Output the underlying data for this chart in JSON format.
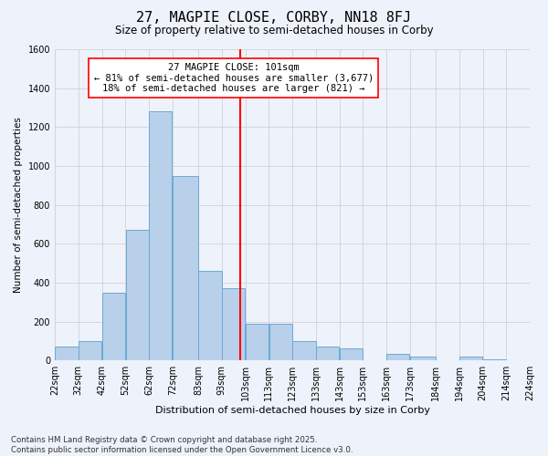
{
  "title": "27, MAGPIE CLOSE, CORBY, NN18 8FJ",
  "subtitle": "Size of property relative to semi-detached houses in Corby",
  "xlabel": "Distribution of semi-detached houses by size in Corby",
  "ylabel": "Number of semi-detached properties",
  "property_size": 101,
  "annotation_line1": "27 MAGPIE CLOSE: 101sqm",
  "annotation_line2": "← 81% of semi-detached houses are smaller (3,677)",
  "annotation_line3": "18% of semi-detached houses are larger (821) →",
  "bins": [
    22,
    32,
    42,
    52,
    62,
    72,
    83,
    93,
    103,
    113,
    123,
    133,
    143,
    153,
    163,
    173,
    184,
    194,
    204,
    214,
    224
  ],
  "bin_labels": [
    "22sqm",
    "32sqm",
    "42sqm",
    "52sqm",
    "62sqm",
    "72sqm",
    "83sqm",
    "93sqm",
    "103sqm",
    "113sqm",
    "123sqm",
    "133sqm",
    "143sqm",
    "153sqm",
    "163sqm",
    "173sqm",
    "184sqm",
    "194sqm",
    "204sqm",
    "214sqm",
    "224sqm"
  ],
  "counts": [
    70,
    100,
    350,
    670,
    1280,
    950,
    460,
    370,
    190,
    190,
    100,
    70,
    60,
    0,
    35,
    20,
    0,
    20,
    5,
    0
  ],
  "bar_color": "#B8D0EA",
  "bar_edge_color": "#6AAAD4",
  "vline_color": "red",
  "grid_color": "#CCCCCC",
  "background_color": "#EEF2FA",
  "annotation_box_color": "white",
  "annotation_box_edge": "red",
  "footer_text": "Contains HM Land Registry data © Crown copyright and database right 2025.\nContains public sector information licensed under the Open Government Licence v3.0.",
  "ylim": [
    0,
    1600
  ],
  "yticks": [
    0,
    200,
    400,
    600,
    800,
    1000,
    1200,
    1400,
    1600
  ]
}
